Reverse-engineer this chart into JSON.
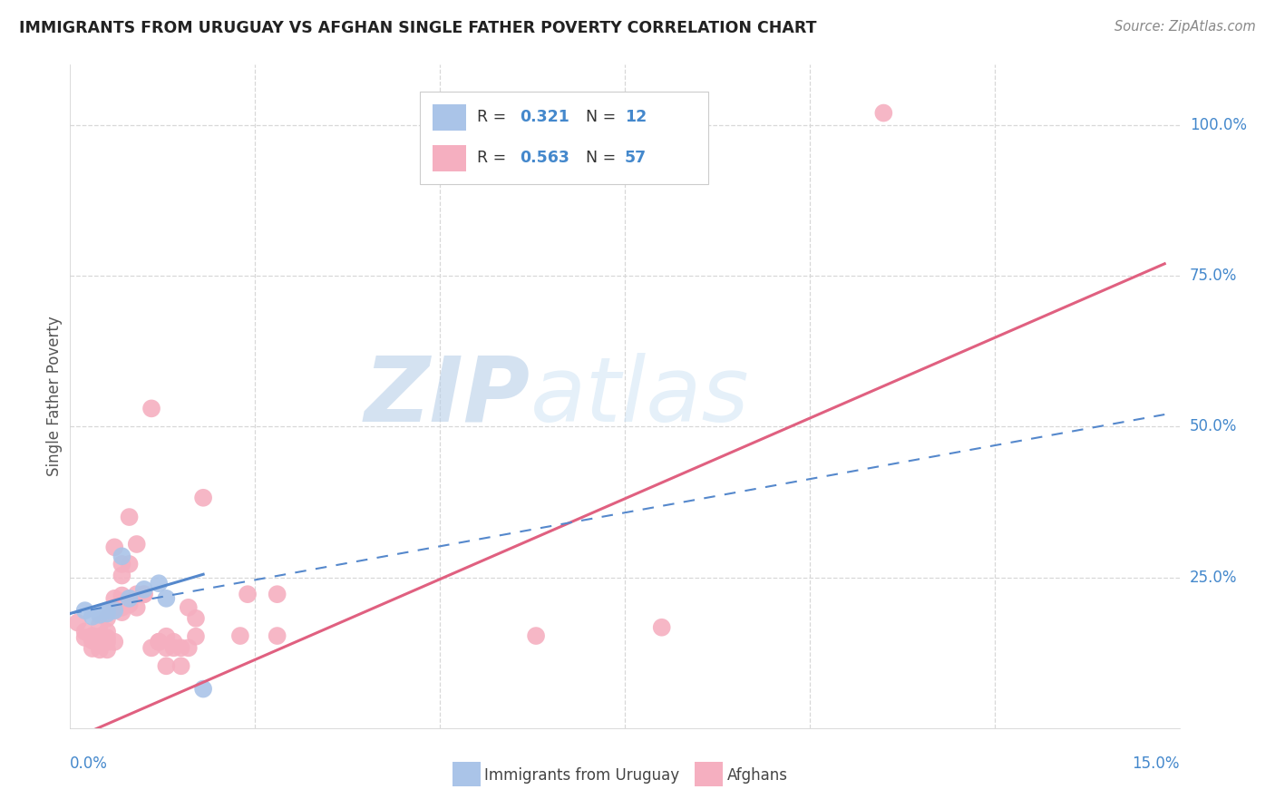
{
  "title": "IMMIGRANTS FROM URUGUAY VS AFGHAN SINGLE FATHER POVERTY CORRELATION CHART",
  "source": "Source: ZipAtlas.com",
  "ylabel": "Single Father Poverty",
  "background_color": "#ffffff",
  "grid_color": "#d8d8d8",
  "uruguay_color": "#aac4e8",
  "afghan_color": "#f5afc0",
  "uruguay_line_color": "#5588cc",
  "afghan_line_color": "#e06080",
  "uruguay_scatter": [
    [
      0.002,
      0.195
    ],
    [
      0.003,
      0.185
    ],
    [
      0.004,
      0.188
    ],
    [
      0.005,
      0.195
    ],
    [
      0.005,
      0.19
    ],
    [
      0.006,
      0.195
    ],
    [
      0.007,
      0.285
    ],
    [
      0.008,
      0.215
    ],
    [
      0.01,
      0.23
    ],
    [
      0.012,
      0.24
    ],
    [
      0.013,
      0.215
    ],
    [
      0.018,
      0.065
    ]
  ],
  "afghan_scatter": [
    [
      0.001,
      0.175
    ],
    [
      0.002,
      0.15
    ],
    [
      0.002,
      0.16
    ],
    [
      0.003,
      0.145
    ],
    [
      0.003,
      0.153
    ],
    [
      0.003,
      0.132
    ],
    [
      0.004,
      0.143
    ],
    [
      0.004,
      0.152
    ],
    [
      0.004,
      0.172
    ],
    [
      0.004,
      0.13
    ],
    [
      0.005,
      0.16
    ],
    [
      0.005,
      0.182
    ],
    [
      0.005,
      0.15
    ],
    [
      0.005,
      0.143
    ],
    [
      0.005,
      0.13
    ],
    [
      0.006,
      0.2
    ],
    [
      0.006,
      0.143
    ],
    [
      0.006,
      0.3
    ],
    [
      0.006,
      0.215
    ],
    [
      0.007,
      0.272
    ],
    [
      0.007,
      0.253
    ],
    [
      0.007,
      0.21
    ],
    [
      0.007,
      0.192
    ],
    [
      0.007,
      0.22
    ],
    [
      0.007,
      0.2
    ],
    [
      0.008,
      0.21
    ],
    [
      0.008,
      0.205
    ],
    [
      0.008,
      0.35
    ],
    [
      0.008,
      0.272
    ],
    [
      0.009,
      0.222
    ],
    [
      0.009,
      0.305
    ],
    [
      0.009,
      0.2
    ],
    [
      0.01,
      0.222
    ],
    [
      0.01,
      0.222
    ],
    [
      0.011,
      0.53
    ],
    [
      0.011,
      0.133
    ],
    [
      0.012,
      0.143
    ],
    [
      0.012,
      0.143
    ],
    [
      0.013,
      0.152
    ],
    [
      0.013,
      0.133
    ],
    [
      0.013,
      0.103
    ],
    [
      0.014,
      0.133
    ],
    [
      0.014,
      0.143
    ],
    [
      0.015,
      0.103
    ],
    [
      0.015,
      0.133
    ],
    [
      0.016,
      0.2
    ],
    [
      0.016,
      0.133
    ],
    [
      0.017,
      0.182
    ],
    [
      0.017,
      0.152
    ],
    [
      0.018,
      0.382
    ],
    [
      0.023,
      0.153
    ],
    [
      0.024,
      0.222
    ],
    [
      0.028,
      0.222
    ],
    [
      0.028,
      0.153
    ],
    [
      0.063,
      0.153
    ],
    [
      0.08,
      0.167
    ],
    [
      0.11,
      1.02
    ]
  ],
  "xlim": [
    0.0,
    0.15
  ],
  "ylim": [
    0.0,
    1.1
  ],
  "yticks": [
    0.25,
    0.5,
    0.75,
    1.0
  ],
  "ytick_labels": [
    "25.0%",
    "50.0%",
    "75.0%",
    "100.0%"
  ],
  "xtick_minor": [
    0.025,
    0.05,
    0.075,
    0.1,
    0.125
  ],
  "watermark_zip": "ZIP",
  "watermark_atlas": "atlas"
}
